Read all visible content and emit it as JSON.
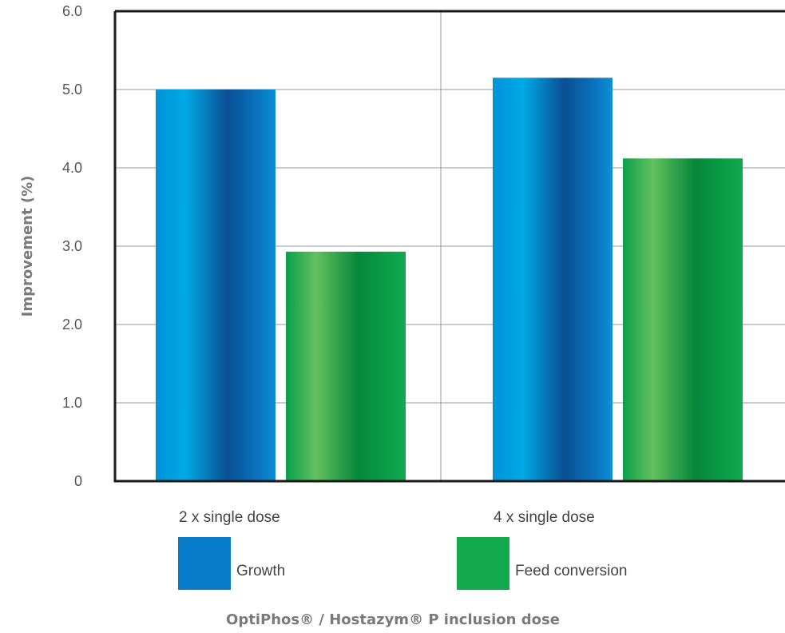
{
  "chart_data": {
    "type": "bar",
    "categories": [
      "2 x single dose",
      "4 x single dose"
    ],
    "series": [
      {
        "name": "Growth",
        "values": [
          5.0,
          5.15
        ],
        "color": "#0077c8"
      },
      {
        "name": "Feed conversion",
        "values": [
          2.93,
          4.12
        ],
        "color": "#0b9a45"
      }
    ],
    "title": "",
    "xlabel": "OptiPhos® / Hostazym® P inclusion dose",
    "ylabel": "Improvement (%)",
    "ylim": [
      0,
      6
    ],
    "yticks": [
      "0",
      "1.0",
      "2.0",
      "3.0",
      "4.0",
      "5.0",
      "6.0"
    ],
    "ytick_values": [
      0,
      1,
      2,
      3,
      4,
      5,
      6
    ],
    "grid": true,
    "legend_placement": "bottom"
  }
}
